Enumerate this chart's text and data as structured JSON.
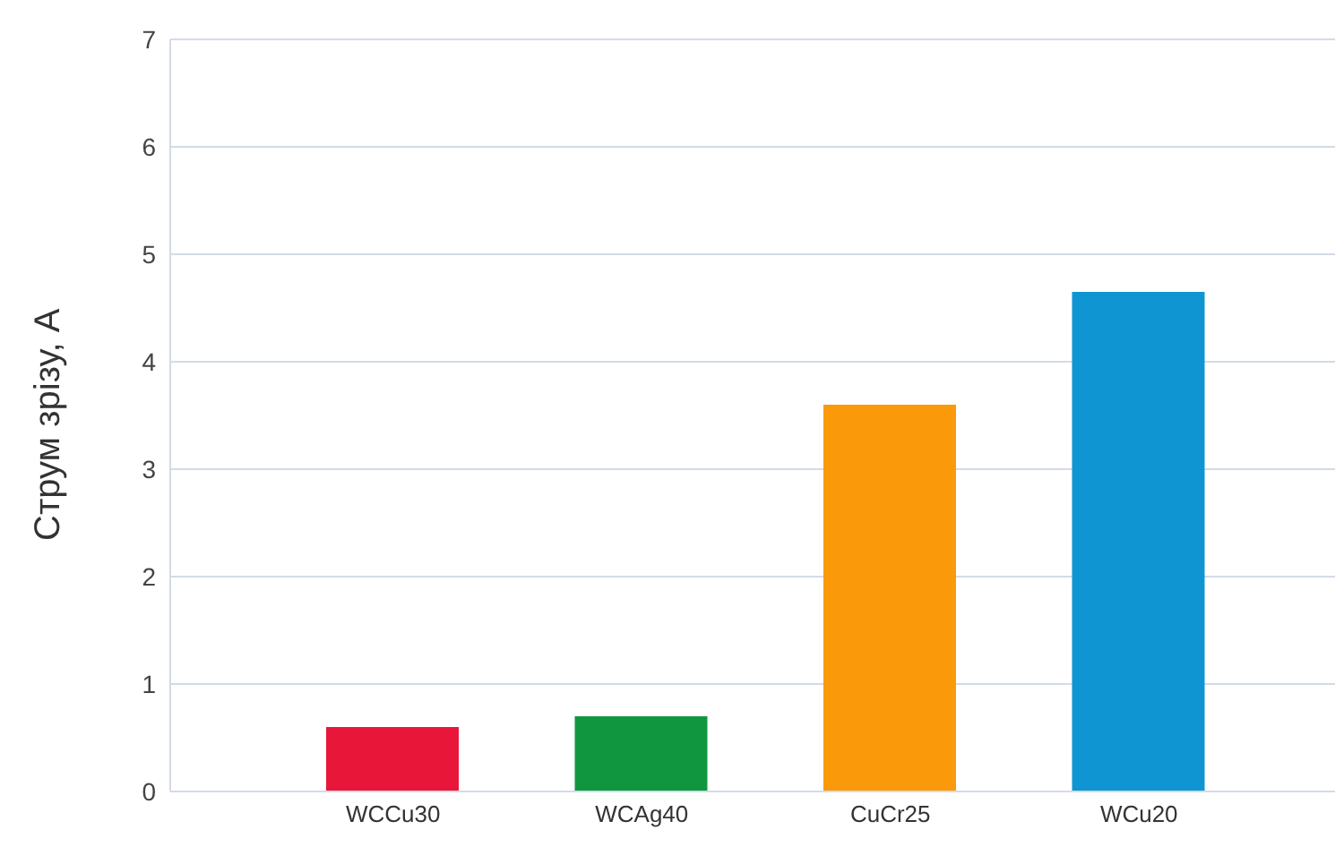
{
  "chart_data": {
    "type": "bar",
    "ylabel": "Струм зрізу, А",
    "categories": [
      "WCCu30",
      "WCAg40",
      "CuCr25",
      "WCu20"
    ],
    "values": [
      0.6,
      0.7,
      3.6,
      4.65
    ],
    "colors": [
      "#e8173a",
      "#119640",
      "#fa9a0a",
      "#0e95d2"
    ],
    "ylim": [
      0,
      7
    ],
    "yticks": [
      0,
      1,
      2,
      3,
      4,
      5,
      6,
      7
    ],
    "grid": "y"
  }
}
